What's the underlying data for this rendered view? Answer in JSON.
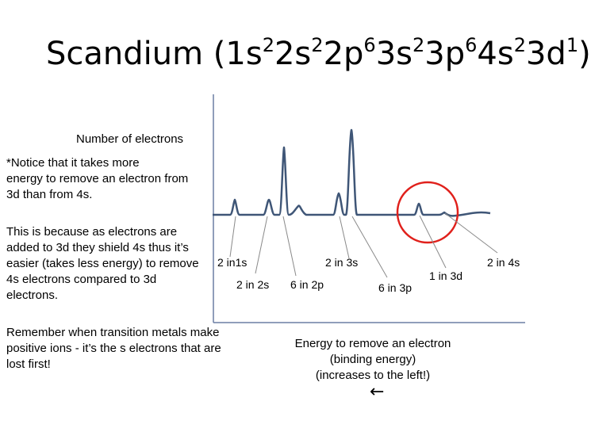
{
  "title": {
    "element": "Scandium",
    "config": [
      {
        "t": "(1s",
        "s": "2"
      },
      {
        "t": "2s",
        "s": "2"
      },
      {
        "t": "2p",
        "s": "6"
      },
      {
        "t": "3s",
        "s": "2"
      },
      {
        "t": "3p",
        "s": "6"
      },
      {
        "t": "4s",
        "s": "2"
      },
      {
        "t": "3d",
        "s": "1"
      },
      {
        "t": ")",
        "s": ""
      }
    ]
  },
  "y_axis_label": "Number of electrons",
  "notes": {
    "notice_lines": [
      "*Notice that it takes more",
      "energy to remove an electron from",
      "3d than from 4s."
    ],
    "because_lines": [
      "This is because as electrons are",
      "added to 3d they shield 4s thus it’s",
      "easier (takes less energy) to remove",
      "4s electrons compared to 3d",
      "electrons."
    ],
    "remember_lines": [
      "Remember when transition metals make",
      "positive ions - it’s the s electrons that are",
      "lost first!"
    ]
  },
  "x_axis_label_lines": [
    "Energy to remove an electron",
    "(binding energy)",
    "(increases to the left!)"
  ],
  "arrow_glyph": "←",
  "peaks": [
    {
      "label": "2 in1s"
    },
    {
      "label": "2 in 2s"
    },
    {
      "label": "6 in 2p"
    },
    {
      "label": "2 in 3s"
    },
    {
      "label": "6 in 3p"
    },
    {
      "label": "1 in 3d"
    },
    {
      "label": "2 in 4s"
    }
  ],
  "colors": {
    "spectrum": "#3f5677",
    "axis": "#6b7fa3",
    "pointer": "#8a8a8a",
    "highlight": "#e0201b"
  }
}
